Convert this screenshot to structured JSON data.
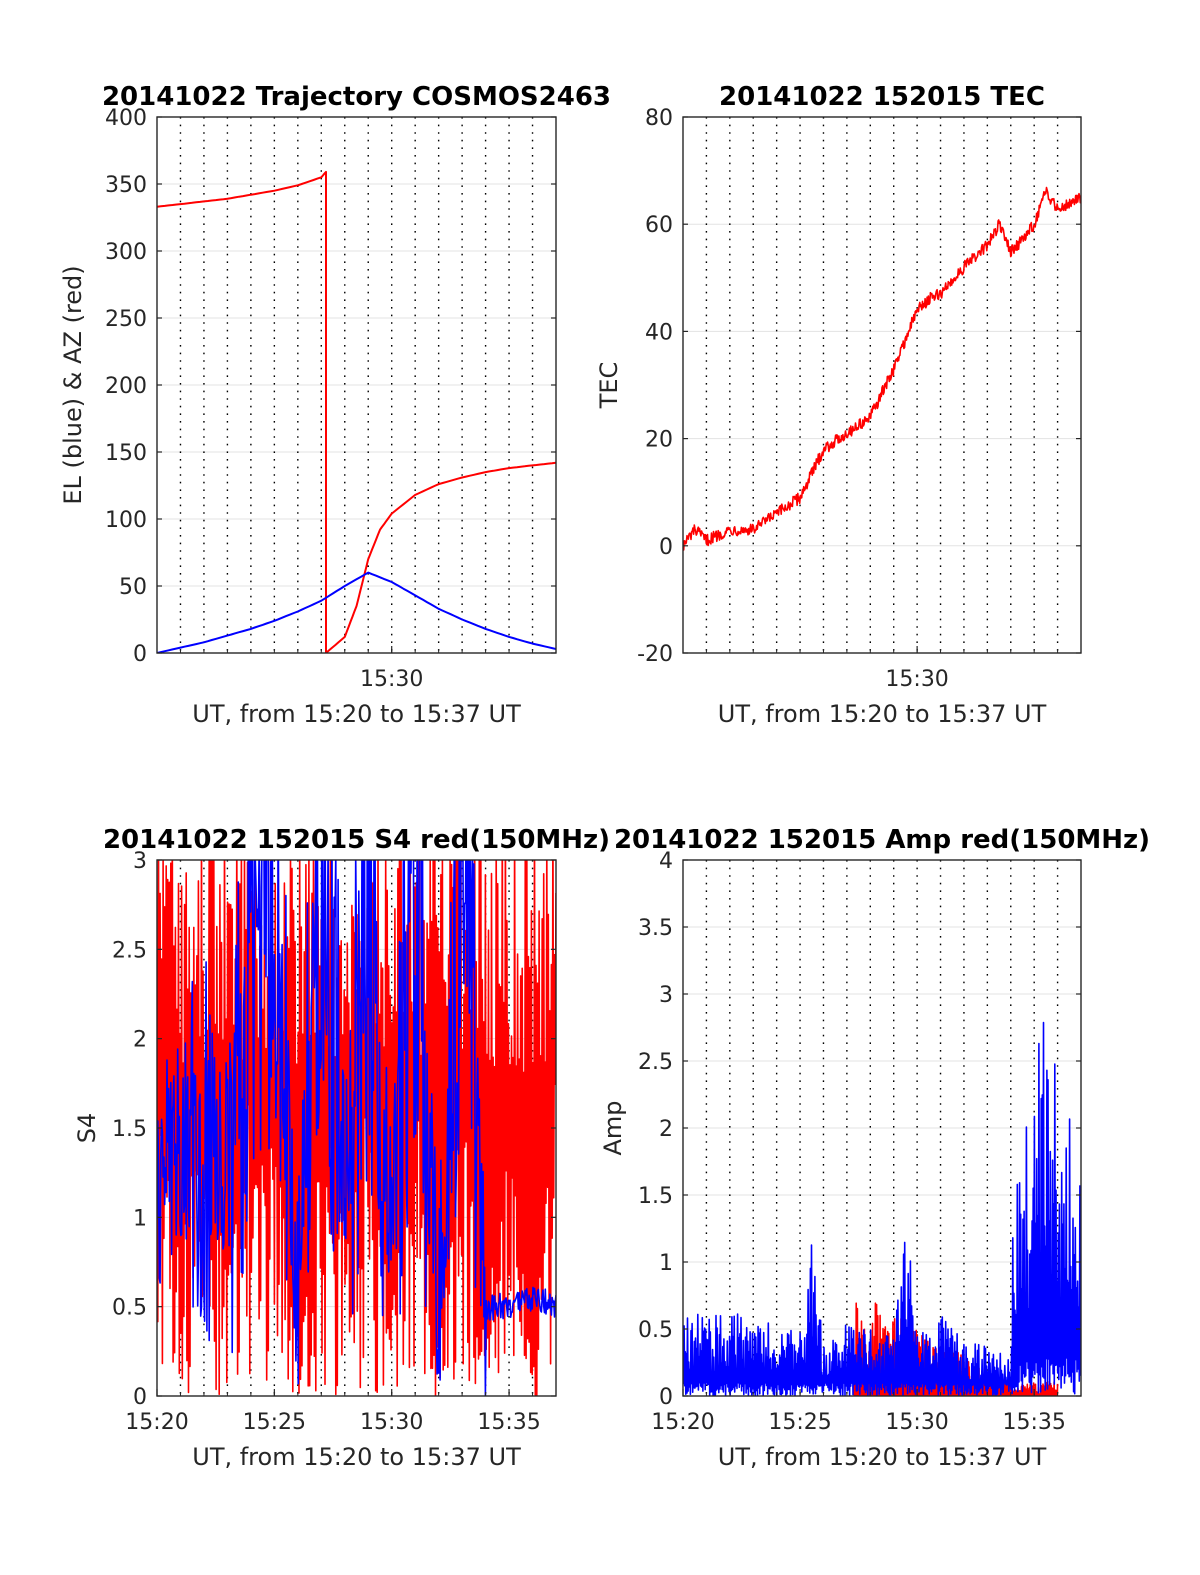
{
  "chart_data": [
    {
      "id": "traj",
      "type": "line",
      "title": "20141022 Trajectory COSMOS2463",
      "xlabel": "UT, from 15:20 to 15:37 UT",
      "ylabel": "EL (blue) & AZ (red)",
      "xlim": [
        "15:20",
        "15:37"
      ],
      "ylim": [
        0,
        400
      ],
      "yticks": [
        "0",
        "50",
        "100",
        "150",
        "200",
        "250",
        "300",
        "350",
        "400"
      ],
      "xticks": [
        "15:30"
      ],
      "grid": true,
      "series": [
        {
          "color": "#ff0000",
          "x": [
            "15:20",
            "15:21",
            "15:22",
            "15:23",
            "15:24",
            "15:25",
            "15:26",
            "15:27",
            "15:27.2",
            "15:27.2",
            "15:28",
            "15:28.5",
            "15:29",
            "15:29.5",
            "15:30",
            "15:31",
            "15:32",
            "15:33",
            "15:34",
            "15:35",
            "15:36",
            "15:37"
          ],
          "values": [
            333,
            335,
            337,
            339,
            342,
            345,
            349,
            355,
            359,
            0,
            12,
            35,
            70,
            92,
            104,
            118,
            126,
            131,
            135,
            138,
            140,
            142
          ]
        },
        {
          "color": "#0000ff",
          "x": [
            "15:20",
            "15:21",
            "15:22",
            "15:23",
            "15:24",
            "15:25",
            "15:26",
            "15:27",
            "15:28",
            "15:29",
            "15:30",
            "15:31",
            "15:32",
            "15:33",
            "15:34",
            "15:35",
            "15:36",
            "15:37"
          ],
          "values": [
            0,
            4,
            8,
            13,
            18,
            24,
            31,
            39,
            50,
            60,
            53,
            43,
            33,
            25,
            18,
            12,
            7,
            3
          ]
        }
      ]
    },
    {
      "id": "tec",
      "type": "line",
      "title": "20141022 152015 TEC",
      "xlabel": "UT, from 15:20 to 15:37 UT",
      "ylabel": "TEC",
      "xlim": [
        "15:20",
        "15:37"
      ],
      "ylim": [
        -20,
        80
      ],
      "yticks": [
        "-20",
        "0",
        "20",
        "40",
        "60",
        "80"
      ],
      "xticks": [
        "15:30"
      ],
      "grid": true,
      "series": [
        {
          "color": "#ff0000",
          "x": [
            "15:20",
            "15:20.5",
            "15:21",
            "15:22",
            "15:23",
            "15:24",
            "15:25",
            "15:26",
            "15:27",
            "15:28",
            "15:29",
            "15:30",
            "15:30.5",
            "15:31",
            "15:32",
            "15:33",
            "15:33.5",
            "15:34",
            "15:34.5",
            "15:35",
            "15:35.5",
            "15:36",
            "15:37"
          ],
          "values": [
            0,
            3,
            1,
            3,
            3,
            6,
            9,
            18,
            21,
            24,
            33,
            44,
            46,
            47,
            52,
            56,
            60,
            55,
            57,
            60,
            66,
            63,
            65
          ]
        }
      ]
    },
    {
      "id": "s4",
      "type": "line",
      "title": "20141022 152015 S4 red(150MHz)",
      "xlabel": "UT, from 15:20 to 15:37 UT",
      "ylabel": "S4",
      "xlim": [
        "15:20",
        "15:37"
      ],
      "ylim": [
        0,
        3
      ],
      "yticks": [
        "0",
        "0.5",
        "1",
        "1.5",
        "2",
        "2.5",
        "3"
      ],
      "xticks": [
        "15:20",
        "15:25",
        "15:30",
        "15:35"
      ],
      "grid": true,
      "series": [
        {
          "color": "#ff0000",
          "x": [
            "15:20",
            "15:21",
            "15:22",
            "15:23",
            "15:24",
            "15:25",
            "15:26",
            "15:27",
            "15:28",
            "15:29",
            "15:30",
            "15:31",
            "15:32",
            "15:33",
            "15:34",
            "15:35",
            "15:36",
            "15:37"
          ],
          "values": [
            3,
            1.3,
            3,
            1.2,
            3,
            2.4,
            0.9,
            3,
            1.6,
            3,
            0.8,
            3,
            0.4,
            3,
            0.5,
            3,
            0.4,
            3
          ]
        },
        {
          "color": "#0000ff",
          "x": [
            "15:20",
            "15:21",
            "15:22",
            "15:23",
            "15:24",
            "15:25",
            "15:26",
            "15:27",
            "15:28",
            "15:29",
            "15:30",
            "15:31",
            "15:32",
            "15:33",
            "15:34",
            "15:35",
            "15:36",
            "15:37"
          ],
          "values": [
            1.2,
            1.4,
            1.6,
            1.3,
            2.3,
            2.6,
            0.6,
            2.9,
            1.2,
            2.5,
            0.9,
            2.8,
            0.5,
            3,
            0.5,
            0.5,
            0.55,
            0.5
          ]
        }
      ]
    },
    {
      "id": "amp",
      "type": "line",
      "title": "20141022 152015 Amp red(150MHz)",
      "xlabel": "UT, from 15:20 to 15:37 UT",
      "ylabel": "Amp",
      "xlim": [
        "15:20",
        "15:37"
      ],
      "ylim": [
        0,
        4
      ],
      "yticks": [
        "0",
        "0.5",
        "1",
        "1.5",
        "2",
        "2.5",
        "3",
        "3.5",
        "4"
      ],
      "xticks": [
        "15:20",
        "15:25",
        "15:30",
        "15:35"
      ],
      "grid": true,
      "series": [
        {
          "color": "#ff0000",
          "x": [
            "15:27.3",
            "15:28",
            "15:28.2",
            "15:34.1",
            "15:35",
            "15:36"
          ],
          "values": [
            0.75,
            0.4,
            0.7,
            0.08,
            0.1,
            0.12
          ]
        },
        {
          "color": "#0000ff",
          "x": [
            "15:20",
            "15:21",
            "15:22",
            "15:23",
            "15:24",
            "15:25",
            "15:25.5",
            "15:26",
            "15:27",
            "15:28",
            "15:29",
            "15:29.6",
            "15:30",
            "15:31",
            "15:32",
            "15:33",
            "15:34",
            "15:34.1",
            "15:35",
            "15:35.5",
            "15:36",
            "15:37"
          ],
          "values": [
            0.6,
            0.55,
            0.6,
            0.55,
            0.5,
            0.45,
            1.05,
            0.35,
            0.5,
            0.45,
            0.4,
            1.3,
            0.4,
            0.55,
            0.4,
            0.35,
            0.25,
            1.6,
            2.4,
            3.2,
            2.3,
            2.0
          ]
        }
      ]
    }
  ]
}
